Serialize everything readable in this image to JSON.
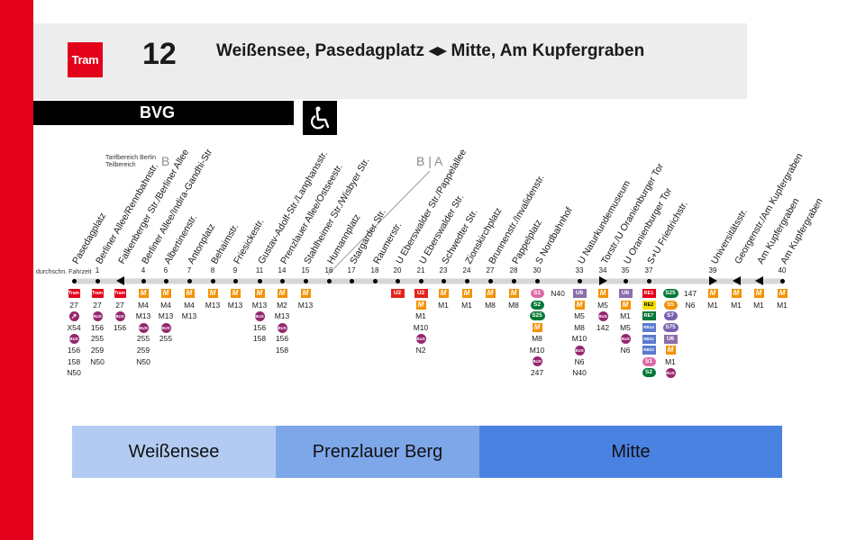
{
  "header": {
    "logo_label": "Tram",
    "line_number": "12",
    "route_title": "Weißensee, Pasedagplatz ◂▸ Mitte, Am Kupfergraben",
    "operator": "BVG",
    "accessibility_icon": "wheelchair-icon"
  },
  "tarif": {
    "label": "Tarifbereich Berlin Teilbereich",
    "zone_left": "B",
    "zone_boundary": "B | A"
  },
  "travel_time_label": "durchschn. Fahrzeit",
  "stops": [
    {
      "name": "Pasedagplatz",
      "minute": "",
      "marker": "dot",
      "connections": [
        "TRAM",
        "27",
        "BUS-X",
        "X54",
        "BUS",
        "156",
        "158",
        "N50"
      ]
    },
    {
      "name": "Berliner Allee/Rennbahnstr.",
      "minute": "1",
      "marker": "dot",
      "connections": [
        "TRAM",
        "27",
        "BUS",
        "156",
        "255",
        "259",
        "N50"
      ]
    },
    {
      "name": "Falkenberger Str./Berliner Allee",
      "minute": "",
      "marker": "arrow-left",
      "connections": [
        "TRAM",
        "27",
        "BUS",
        "156"
      ]
    },
    {
      "name": "Berliner Allee/Indira-Gandhi-Str",
      "minute": "4",
      "marker": "dot",
      "connections": [
        "M",
        "M4",
        "M13",
        "BUS",
        "255",
        "259",
        "N50"
      ]
    },
    {
      "name": "Albertinenstr.",
      "minute": "6",
      "marker": "dot",
      "connections": [
        "M",
        "M4",
        "M13",
        "BUS",
        "255"
      ]
    },
    {
      "name": "Antonplatz",
      "minute": "7",
      "marker": "dot",
      "connections": [
        "M",
        "M4",
        "M13"
      ]
    },
    {
      "name": "Behaimstr.",
      "minute": "8",
      "marker": "dot",
      "connections": [
        "M",
        "M13"
      ]
    },
    {
      "name": "Friesickestr.",
      "minute": "9",
      "marker": "dot",
      "connections": [
        "M",
        "M13"
      ]
    },
    {
      "name": "Gustav-Adolf-Str./Langhansstr.",
      "minute": "11",
      "marker": "dot",
      "connections": [
        "M",
        "M13",
        "BUS",
        "156",
        "158"
      ]
    },
    {
      "name": "Prenzlauer Allee/Ostseestr.",
      "minute": "14",
      "marker": "dot",
      "connections": [
        "M",
        "M2",
        "M13",
        "BUS",
        "156",
        "158"
      ]
    },
    {
      "name": "Stahlheimer Str./Wisbyer Str.",
      "minute": "15",
      "marker": "dot",
      "connections": [
        "M",
        "M13"
      ]
    },
    {
      "name": "Humannplatz",
      "minute": "16",
      "marker": "dot",
      "connections": []
    },
    {
      "name": "Stargarder Str.",
      "minute": "17",
      "marker": "dot",
      "connections": []
    },
    {
      "name": "Raumerstr.",
      "minute": "18",
      "marker": "dot",
      "connections": []
    },
    {
      "name": "U Eberswalder Str./Pappelallee",
      "minute": "20",
      "marker": "dot",
      "connections": [
        "U2"
      ]
    },
    {
      "name": "U Eberswalder Str.",
      "minute": "21",
      "marker": "dot",
      "connections": [
        "U2",
        "M",
        "M1",
        "M10",
        "BUS",
        "N2"
      ]
    },
    {
      "name": "Schwedter Str.",
      "minute": "23",
      "marker": "dot",
      "connections": [
        "M",
        "M1"
      ]
    },
    {
      "name": "Zionskirchplatz",
      "minute": "24",
      "marker": "dot",
      "connections": [
        "M",
        "M1"
      ]
    },
    {
      "name": "Brunnenstr./Invalidenstr.",
      "minute": "27",
      "marker": "dot",
      "connections": [
        "M",
        "M8"
      ]
    },
    {
      "name": "Pappelplatz",
      "minute": "28",
      "marker": "dot",
      "connections": [
        "M",
        "M8"
      ]
    },
    {
      "name": "S Nordbahnhof",
      "minute": "30",
      "marker": "dot",
      "connections": [
        "S1",
        "S2",
        "S25",
        "M",
        "M8",
        "M10",
        "BUS",
        "247"
      ]
    },
    {
      "name": "",
      "minute": "",
      "marker": "none",
      "connections": [
        "N40"
      ]
    },
    {
      "name": "U Naturkundemuseum",
      "minute": "33",
      "marker": "dot",
      "connections": [
        "U6",
        "M",
        "M5",
        "M8",
        "M10",
        "BUS",
        "N6",
        "N40"
      ]
    },
    {
      "name": "Torstr./U Oranienburger Tor",
      "minute": "34",
      "marker": "arrow-right",
      "connections": [
        "M",
        "M5",
        "BUS",
        "142"
      ]
    },
    {
      "name": "U Oranienburger Tor",
      "minute": "35",
      "marker": "dot",
      "connections": [
        "U6",
        "M",
        "M1",
        "M5",
        "BUS",
        "N6"
      ]
    },
    {
      "name": "S+U Friedrichstr.",
      "minute": "37",
      "marker": "dot",
      "connections": [
        "RE1",
        "RE2",
        "RE7",
        "RB14",
        "RB21",
        "RB22",
        "S1",
        "S2"
      ]
    },
    {
      "name": "",
      "minute": "",
      "marker": "none",
      "connections": [
        "S25",
        "S5",
        "S7",
        "S75",
        "U6",
        "M",
        "M1",
        "BUS"
      ]
    },
    {
      "name": "",
      "minute": "",
      "marker": "none",
      "connections": [
        "147",
        "N6"
      ]
    },
    {
      "name": "Universitätsstr.",
      "minute": "39",
      "marker": "arrow-right",
      "connections": [
        "M",
        "M1"
      ]
    },
    {
      "name": "Georgenstr./Am Kupfergraben",
      "minute": "",
      "marker": "arrow-left",
      "connections": [
        "M",
        "M1"
      ]
    },
    {
      "name": "Am Kupfergraben",
      "minute": "",
      "marker": "arrow-left",
      "connections": [
        "M",
        "M1"
      ]
    },
    {
      "name": "Am Kupfergraben",
      "minute": "40",
      "marker": "dot",
      "connections": [
        "M",
        "M1"
      ]
    }
  ],
  "districts": [
    "Weißensee",
    "Prenzlauer Berg",
    "Mitte"
  ],
  "colors": {
    "brand_red": "#e2001a",
    "metro_orange": "#f39200",
    "bus_purple": "#95276e",
    "district_weissensee": "#b3cbf2",
    "district_prenzlauer_berg": "#7ea7ea",
    "district_mitte": "#4a82e2"
  }
}
